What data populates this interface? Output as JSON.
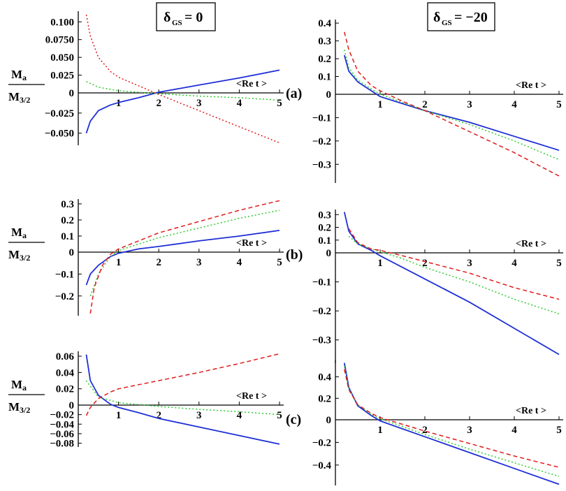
{
  "headers": {
    "left": "δ_GS= 0",
    "right": "δ_GS= −20"
  },
  "y_label": {
    "numerator": "M_a",
    "denominator": "M_3/2"
  },
  "x_label": "<Re t >",
  "colors": {
    "solid": "#1f2fd6",
    "dashed": "#e01b1b",
    "dotted_green": "#2ecc2e",
    "dotted_red": "#e01b1b"
  },
  "chart_data": [
    {
      "type": "line",
      "row_label": "(a)",
      "column": "left",
      "x_ticks": [
        "1",
        "2",
        "3",
        "4",
        "5"
      ],
      "y_ticks": [
        "0.100",
        "0.0750",
        "0.050",
        "0.025",
        "0",
        "−0.025",
        "−0.050"
      ],
      "ylim": [
        -0.065,
        0.115
      ],
      "xlim": [
        0,
        5
      ],
      "series": [
        {
          "style": "solid",
          "x": [
            0.2,
            0.3,
            0.5,
            0.8,
            1.0,
            1.5,
            2.0,
            3.0,
            4.0,
            5.0
          ],
          "y": [
            -0.05,
            -0.035,
            -0.022,
            -0.015,
            -0.012,
            -0.006,
            0.001,
            0.011,
            0.021,
            0.032
          ]
        },
        {
          "style": "dotted_green",
          "x": [
            0.2,
            0.5,
            1.0,
            2.0,
            3.0,
            4.0,
            5.0
          ],
          "y": [
            0.016,
            0.008,
            0.003,
            -0.001,
            -0.004,
            -0.006,
            -0.009
          ]
        },
        {
          "style": "dotted_red",
          "x": [
            0.2,
            0.3,
            0.5,
            0.8,
            1.0,
            1.5,
            2.0,
            3.0,
            4.0,
            5.0
          ],
          "y": [
            0.11,
            0.08,
            0.05,
            0.03,
            0.022,
            0.01,
            -0.002,
            -0.022,
            -0.042,
            -0.062
          ]
        }
      ]
    },
    {
      "type": "line",
      "row_label": "(a)",
      "column": "right",
      "x_ticks": [
        "1",
        "2",
        "3",
        "4",
        "5"
      ],
      "y_ticks": [
        "0.4",
        "0.3",
        "0.2",
        "0.1",
        "0",
        "−0.1",
        "−0.2",
        "−0.3"
      ],
      "ylim": [
        -0.38,
        0.42
      ],
      "xlim": [
        0,
        5
      ],
      "series": [
        {
          "style": "solid",
          "x": [
            0.2,
            0.3,
            0.5,
            0.8,
            1.0,
            1.5,
            2.0,
            3.0,
            4.0,
            5.0
          ],
          "y": [
            0.22,
            0.13,
            0.07,
            0.02,
            -0.01,
            -0.04,
            -0.07,
            -0.12,
            -0.18,
            -0.24
          ]
        },
        {
          "style": "dotted_green",
          "x": [
            0.2,
            0.3,
            0.5,
            0.8,
            1.0,
            1.5,
            2.0,
            3.0,
            4.0,
            5.0
          ],
          "y": [
            0.25,
            0.15,
            0.08,
            0.03,
            0.0,
            -0.035,
            -0.07,
            -0.13,
            -0.2,
            -0.28
          ]
        },
        {
          "style": "dashed",
          "x": [
            0.2,
            0.3,
            0.5,
            0.8,
            1.0,
            1.5,
            2.0,
            3.0,
            4.0,
            5.0
          ],
          "y": [
            0.35,
            0.25,
            0.13,
            0.05,
            0.02,
            -0.03,
            -0.07,
            -0.16,
            -0.25,
            -0.35
          ]
        }
      ]
    },
    {
      "type": "line",
      "row_label": "(b)",
      "column": "left",
      "x_ticks": [
        "1",
        "2",
        "3",
        "4",
        "5"
      ],
      "y_ticks": [
        "0.3",
        "0.2",
        "0.1",
        "0",
        "−0.1",
        "−0.2"
      ],
      "ylim": [
        -0.29,
        0.33
      ],
      "xlim": [
        0,
        5
      ],
      "series": [
        {
          "style": "solid",
          "x": [
            0.2,
            0.3,
            0.5,
            0.8,
            1.0,
            1.5,
            2.0,
            3.0,
            4.0,
            5.0
          ],
          "y": [
            -0.15,
            -0.1,
            -0.06,
            -0.02,
            -0.005,
            0.02,
            0.035,
            0.07,
            0.1,
            0.135
          ]
        },
        {
          "style": "dotted_green",
          "x": [
            0.3,
            0.5,
            0.8,
            1.0,
            1.5,
            2.0,
            3.0,
            4.0,
            5.0
          ],
          "y": [
            -0.2,
            -0.1,
            -0.02,
            0.01,
            0.05,
            0.09,
            0.15,
            0.21,
            0.26
          ]
        },
        {
          "style": "dashed",
          "x": [
            0.3,
            0.4,
            0.6,
            0.8,
            1.0,
            1.5,
            2.0,
            3.0,
            4.0,
            5.0
          ],
          "y": [
            -0.28,
            -0.16,
            -0.06,
            -0.01,
            0.02,
            0.07,
            0.12,
            0.19,
            0.26,
            0.32
          ]
        }
      ]
    },
    {
      "type": "line",
      "row_label": "(b)",
      "column": "right",
      "x_ticks": [
        "1",
        "2",
        "3",
        "4",
        "5"
      ],
      "y_ticks": [
        "0.3",
        "0.2",
        "0.1",
        "0",
        "−0.1",
        "−0.2",
        "−0.3"
      ],
      "ylim": [
        -0.38,
        0.34
      ],
      "xlim": [
        0,
        5
      ],
      "series": [
        {
          "style": "solid",
          "x": [
            0.2,
            0.3,
            0.5,
            0.8,
            1.0,
            1.5,
            2.0,
            3.0,
            4.0,
            5.0
          ],
          "y": [
            0.32,
            0.17,
            0.07,
            0.02,
            -0.01,
            -0.05,
            -0.09,
            -0.17,
            -0.26,
            -0.35
          ]
        },
        {
          "style": "dotted_green",
          "x": [
            0.3,
            0.5,
            0.8,
            1.0,
            1.5,
            2.0,
            3.0,
            4.0,
            5.0
          ],
          "y": [
            0.13,
            0.07,
            0.03,
            0.01,
            -0.02,
            -0.05,
            -0.1,
            -0.16,
            -0.21
          ]
        },
        {
          "style": "dashed",
          "x": [
            0.3,
            0.5,
            0.8,
            1.0,
            1.5,
            2.0,
            3.0,
            4.0,
            5.0
          ],
          "y": [
            0.19,
            0.08,
            0.03,
            0.02,
            -0.01,
            -0.03,
            -0.07,
            -0.12,
            -0.16
          ]
        }
      ]
    },
    {
      "type": "line",
      "row_label": "(c)",
      "column": "left",
      "x_ticks": [
        "1",
        "2",
        "3",
        "4",
        "5"
      ],
      "y_ticks": [
        "0.06",
        "0.04",
        "0.02",
        "0",
        "−0.02",
        "−0.04",
        "−0.06",
        "−0.08"
      ],
      "ylim": [
        -0.088,
        0.066
      ],
      "xlim": [
        0,
        5
      ],
      "series": [
        {
          "style": "solid",
          "x": [
            0.2,
            0.3,
            0.5,
            0.8,
            1.0,
            1.5,
            2.0,
            3.0,
            4.0,
            5.0
          ],
          "y": [
            0.062,
            0.03,
            0.012,
            0.001,
            -0.005,
            -0.016,
            -0.028,
            -0.046,
            -0.064,
            -0.082
          ]
        },
        {
          "style": "dotted_green",
          "x": [
            0.2,
            0.5,
            1.0,
            2.0,
            3.0,
            4.0,
            5.0
          ],
          "y": [
            0.03,
            0.01,
            0.003,
            -0.003,
            -0.009,
            -0.014,
            -0.02
          ]
        },
        {
          "style": "dashed",
          "x": [
            0.2,
            0.3,
            0.5,
            0.8,
            1.0,
            1.5,
            2.0,
            3.0,
            4.0,
            5.0
          ],
          "y": [
            -0.022,
            -0.005,
            0.008,
            0.016,
            0.02,
            0.025,
            0.03,
            0.04,
            0.051,
            0.063
          ]
        }
      ]
    },
    {
      "type": "line",
      "row_label": "(c)",
      "column": "right",
      "x_ticks": [
        "1",
        "2",
        "3",
        "4",
        "5"
      ],
      "y_ticks": [
        "0.4",
        "0.2",
        "0",
        "−0.2",
        "−0.4"
      ],
      "ylim": [
        -0.58,
        0.56
      ],
      "xlim": [
        0,
        5
      ],
      "series": [
        {
          "style": "solid",
          "x": [
            0.2,
            0.3,
            0.5,
            0.8,
            1.0,
            1.5,
            2.0,
            3.0,
            4.0,
            5.0
          ],
          "y": [
            0.53,
            0.3,
            0.13,
            0.04,
            -0.01,
            -0.08,
            -0.15,
            -0.29,
            -0.43,
            -0.57
          ]
        },
        {
          "style": "dotted_green",
          "x": [
            0.2,
            0.3,
            0.5,
            0.8,
            1.0,
            1.5,
            2.0,
            3.0,
            4.0,
            5.0
          ],
          "y": [
            0.5,
            0.29,
            0.14,
            0.05,
            0.01,
            -0.06,
            -0.13,
            -0.26,
            -0.38,
            -0.5
          ]
        },
        {
          "style": "dashed",
          "x": [
            0.2,
            0.3,
            0.5,
            0.8,
            1.0,
            1.5,
            2.0,
            3.0,
            4.0,
            5.0
          ],
          "y": [
            0.47,
            0.28,
            0.14,
            0.06,
            0.02,
            -0.04,
            -0.1,
            -0.21,
            -0.32,
            -0.42
          ]
        }
      ]
    }
  ]
}
